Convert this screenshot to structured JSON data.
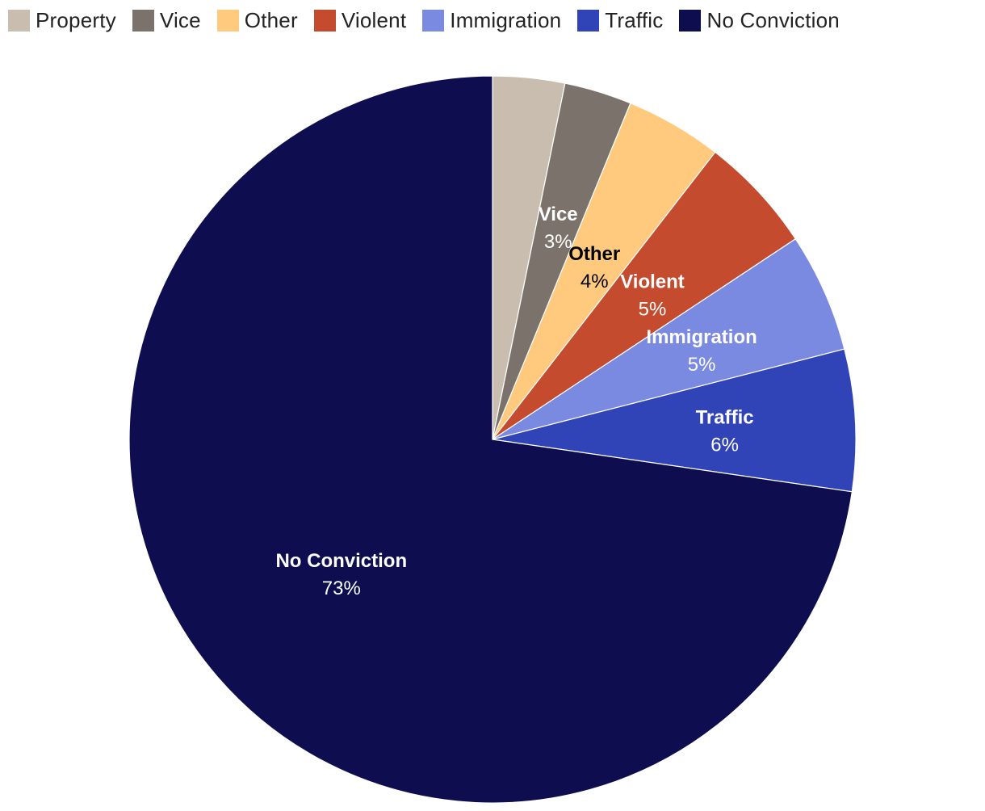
{
  "chart_data": {
    "type": "pie",
    "title": "",
    "legend_position": "top-left",
    "start_angle_deg": 0,
    "direction": "clockwise",
    "slices": [
      {
        "name": "Property",
        "value": 3.2,
        "label": "",
        "color": "#c9bdb0",
        "label_color": ""
      },
      {
        "name": "Vice",
        "value": 3.0,
        "label": "3%",
        "color": "#7b736b",
        "label_color": "#ffffff"
      },
      {
        "name": "Other",
        "value": 4.3,
        "label": "4%",
        "color": "#ffc97e",
        "label_color": "#000000"
      },
      {
        "name": "Violent",
        "value": 5.2,
        "label": "5%",
        "color": "#c44b2d",
        "label_color": "#ffffff"
      },
      {
        "name": "Immigration",
        "value": 5.3,
        "label": "5%",
        "color": "#7b8ae1",
        "label_color": "#ffffff"
      },
      {
        "name": "Traffic",
        "value": 6.3,
        "label": "6%",
        "color": "#3043b7",
        "label_color": "#ffffff"
      },
      {
        "name": "No Conviction",
        "value": 72.7,
        "label": "73%",
        "color": "#0d0d4f",
        "label_color": "#ffffff"
      }
    ]
  }
}
